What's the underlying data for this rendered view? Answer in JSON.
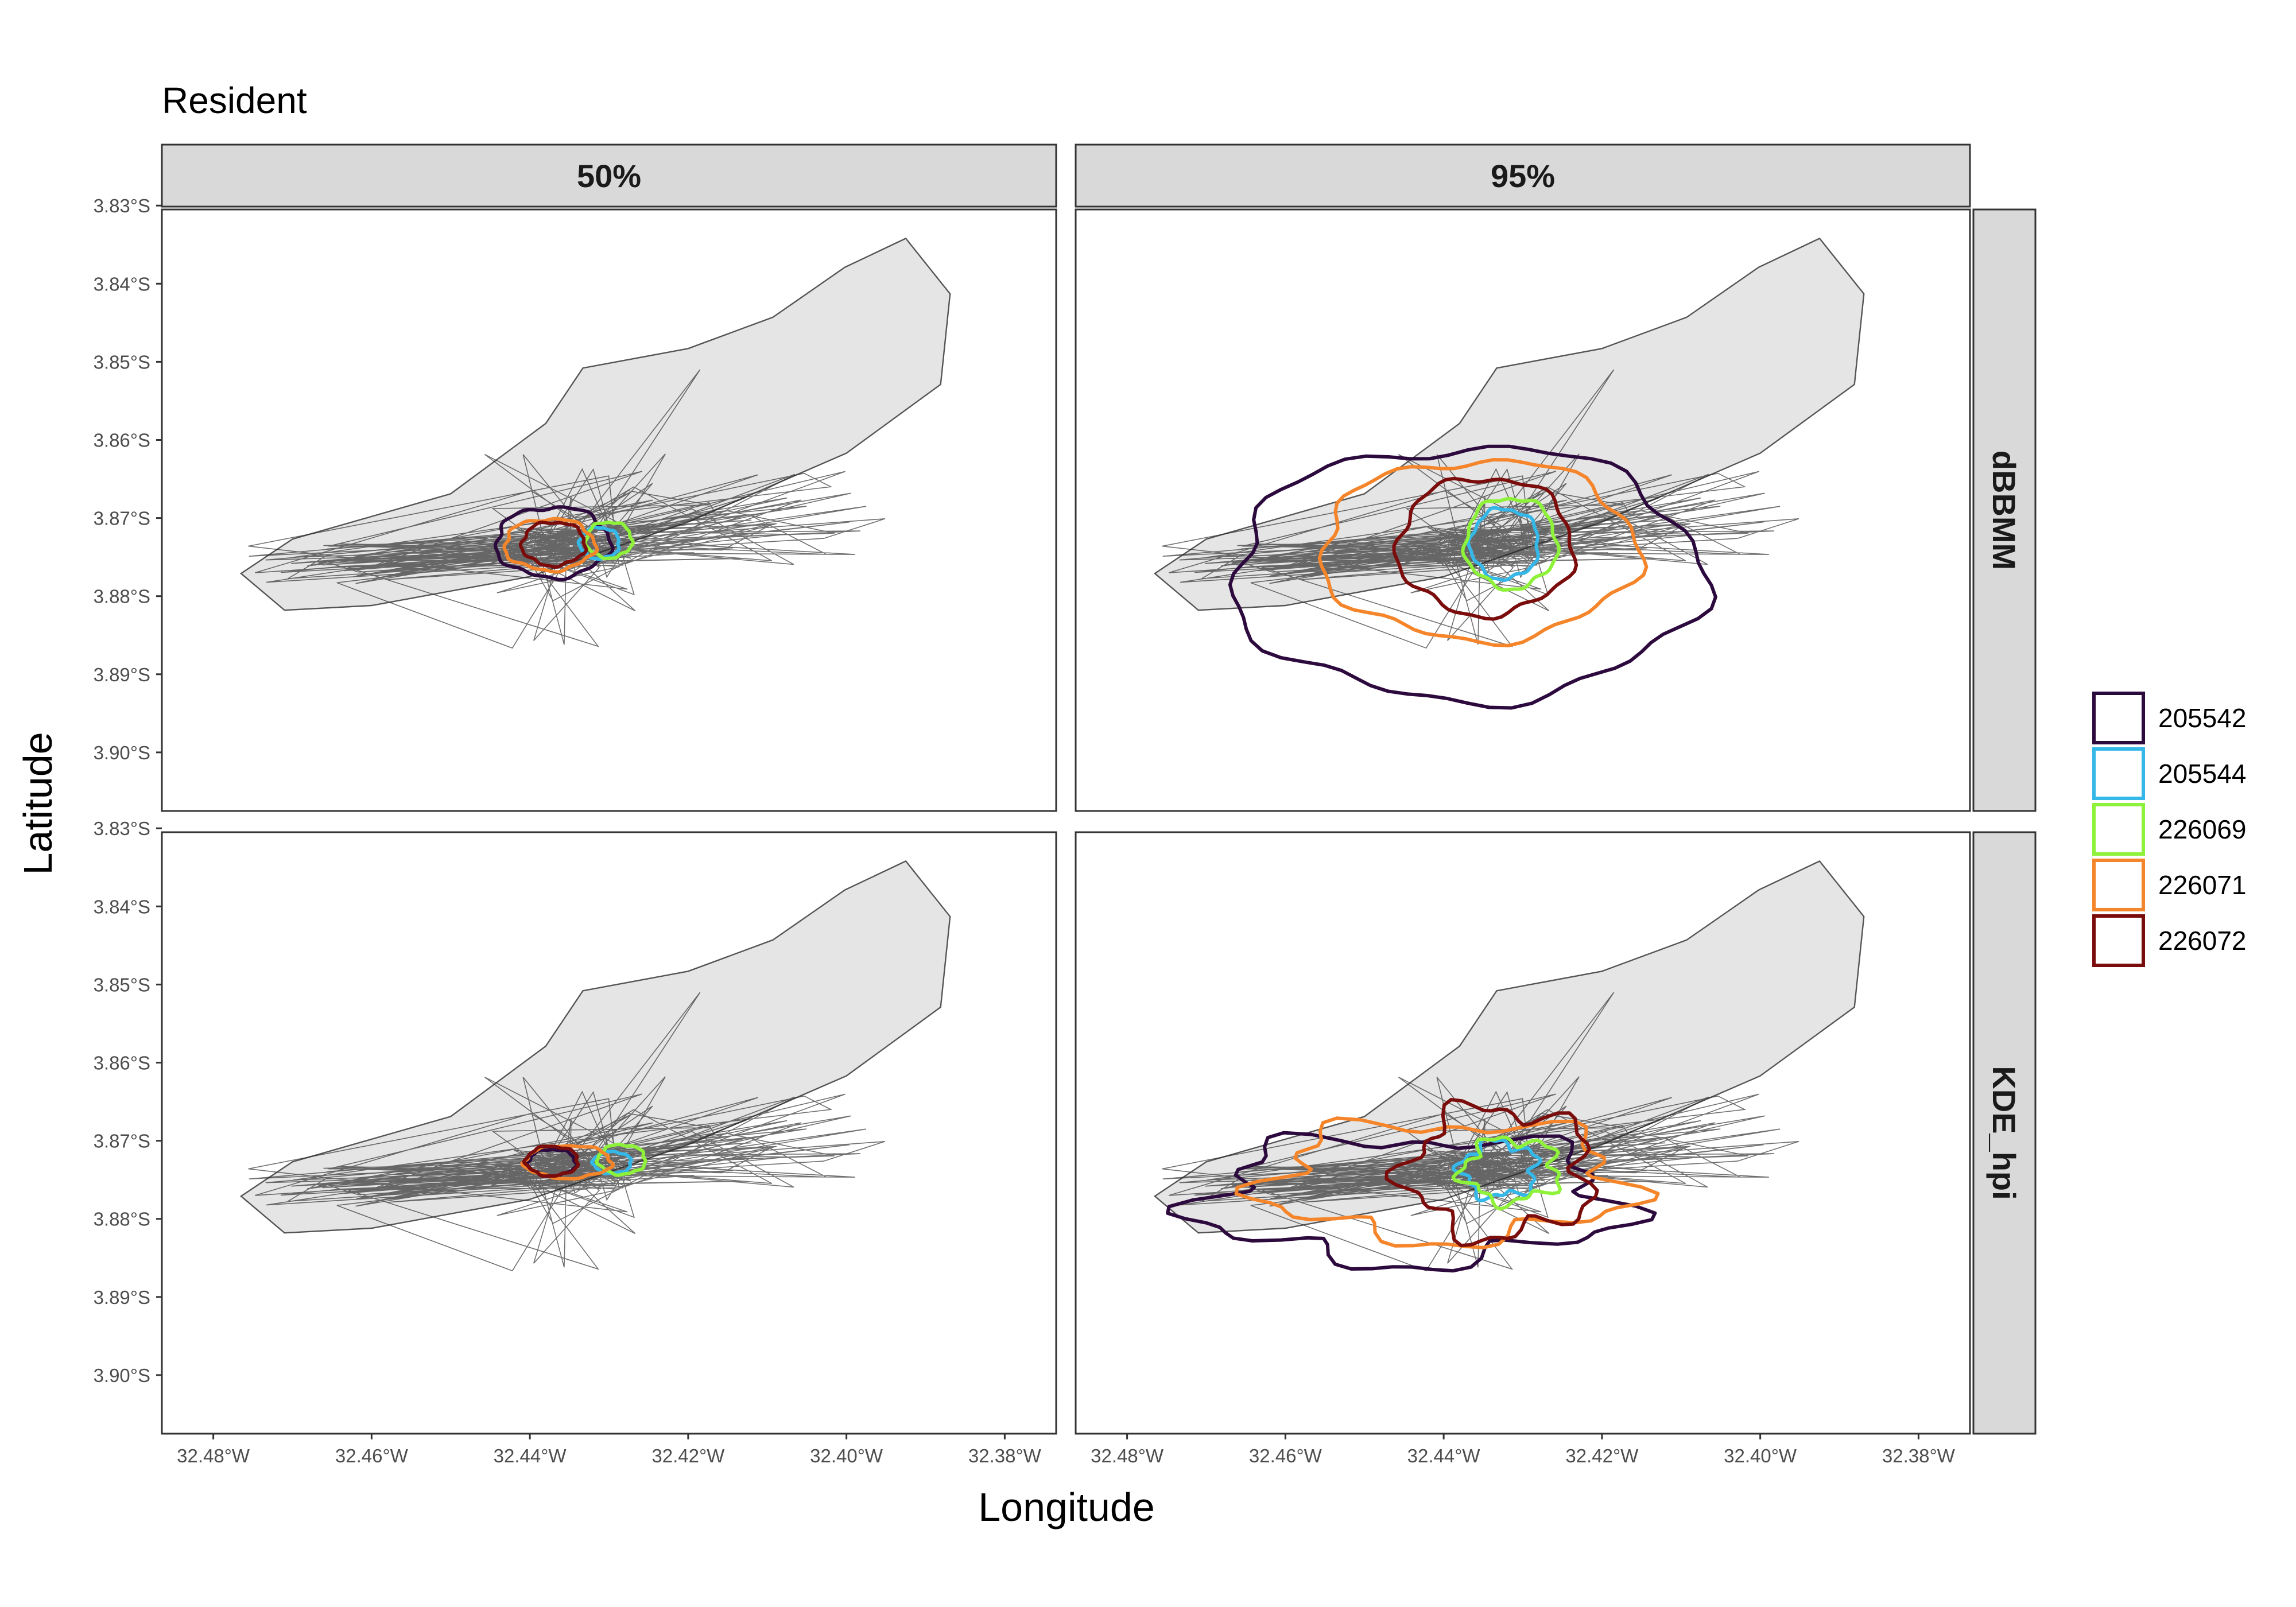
{
  "chart_data": {
    "type": "map",
    "title": "Resident",
    "xlabel": "Longitude",
    "ylabel": "Latitude",
    "xlim": [
      -32.4865,
      -32.3735
    ],
    "ylim": [
      -3.9075,
      -3.8305
    ],
    "x_ticks": [
      {
        "value": -32.48,
        "label": "32.48°W"
      },
      {
        "value": -32.46,
        "label": "32.46°W"
      },
      {
        "value": -32.44,
        "label": "32.44°W"
      },
      {
        "value": -32.42,
        "label": "32.42°W"
      },
      {
        "value": -32.4,
        "label": "32.40°W"
      },
      {
        "value": -32.38,
        "label": "32.38°W"
      }
    ],
    "y_ticks": [
      {
        "value": -3.83,
        "label": "3.83°S"
      },
      {
        "value": -3.84,
        "label": "3.84°S"
      },
      {
        "value": -3.85,
        "label": "3.85°S"
      },
      {
        "value": -3.86,
        "label": "3.86°S"
      },
      {
        "value": -3.87,
        "label": "3.87°S"
      },
      {
        "value": -3.88,
        "label": "3.88°S"
      },
      {
        "value": -3.89,
        "label": "3.89°S"
      },
      {
        "value": -3.9,
        "label": "3.90°S"
      }
    ],
    "facet_columns": [
      "50%",
      "95%"
    ],
    "facet_rows": [
      "dBBMM",
      "KDE_hpi"
    ],
    "legend": {
      "position": "right",
      "entries": [
        {
          "name": "205542",
          "color": "#2d0a3e"
        },
        {
          "name": "205544",
          "color": "#35b8e8"
        },
        {
          "name": "226069",
          "color": "#8ff23a"
        },
        {
          "name": "226071",
          "color": "#f5852a"
        },
        {
          "name": "226072",
          "color": "#7a0c0c"
        }
      ]
    },
    "background_polygon": [
      [
        -32.4765,
        -3.8771
      ],
      [
        -32.47,
        -3.8727
      ],
      [
        -32.46,
        -3.8698
      ],
      [
        -32.45,
        -3.8669
      ],
      [
        -32.438,
        -3.8579
      ],
      [
        -32.4333,
        -3.8508
      ],
      [
        -32.42,
        -3.8483
      ],
      [
        -32.4093,
        -3.8443
      ],
      [
        -32.4002,
        -3.8379
      ],
      [
        -32.3925,
        -3.8342
      ],
      [
        -32.3869,
        -3.8413
      ],
      [
        -32.3881,
        -3.8529
      ],
      [
        -32.4,
        -3.8617
      ],
      [
        -32.42,
        -3.8705
      ],
      [
        -32.44,
        -3.8775
      ],
      [
        -32.46,
        -3.8812
      ],
      [
        -32.471,
        -3.8818
      ]
    ],
    "track_center": [
      -32.434,
      -3.8738
    ],
    "contours": [
      {
        "row": "dBBMM",
        "level": "50%",
        "id": "205542",
        "center": [
          -32.4371,
          -3.8731
        ],
        "radii": [
          0.0072,
          0.0045
        ]
      },
      {
        "row": "dBBMM",
        "level": "50%",
        "id": "205544",
        "center": [
          -32.4312,
          -3.8732
        ],
        "radii": [
          0.0025,
          0.002
        ]
      },
      {
        "row": "dBBMM",
        "level": "50%",
        "id": "226069",
        "center": [
          -32.43,
          -3.8728
        ],
        "radii": [
          0.0029,
          0.0023
        ]
      },
      {
        "row": "dBBMM",
        "level": "50%",
        "id": "226071",
        "center": [
          -32.4375,
          -3.8734
        ],
        "radii": [
          0.0057,
          0.0033
        ]
      },
      {
        "row": "dBBMM",
        "level": "50%",
        "id": "226072",
        "center": [
          -32.437,
          -3.8733
        ],
        "radii": [
          0.004,
          0.0028
        ]
      },
      {
        "row": "dBBMM",
        "level": "95%",
        "id": "205542",
        "center": [
          -32.437,
          -3.8771
        ],
        "radii": [
          0.0297,
          0.0162
        ]
      },
      {
        "row": "dBBMM",
        "level": "95%",
        "id": "205544",
        "center": [
          -32.4323,
          -3.8733
        ],
        "radii": [
          0.0043,
          0.0045
        ]
      },
      {
        "row": "dBBMM",
        "level": "95%",
        "id": "226069",
        "center": [
          -32.4315,
          -3.8732
        ],
        "radii": [
          0.0058,
          0.0058
        ]
      },
      {
        "row": "dBBMM",
        "level": "95%",
        "id": "226071",
        "center": [
          -32.4355,
          -3.8741
        ],
        "radii": [
          0.02,
          0.0115
        ]
      },
      {
        "row": "dBBMM",
        "level": "95%",
        "id": "226072",
        "center": [
          -32.4347,
          -3.8736
        ],
        "radii": [
          0.0111,
          0.0088
        ]
      },
      {
        "row": "KDE_hpi",
        "level": "50%",
        "id": "205542",
        "center": [
          -32.4372,
          -3.8728
        ],
        "radii": [
          0.003,
          0.0017
        ]
      },
      {
        "row": "KDE_hpi",
        "level": "50%",
        "id": "205544",
        "center": [
          -32.4296,
          -3.8728
        ],
        "radii": [
          0.0024,
          0.0014
        ]
      },
      {
        "row": "KDE_hpi",
        "level": "50%",
        "id": "226069",
        "center": [
          -32.4284,
          -3.8724
        ],
        "radii": [
          0.003,
          0.0019
        ]
      },
      {
        "row": "KDE_hpi",
        "level": "50%",
        "id": "226071",
        "center": [
          -32.4352,
          -3.8727
        ],
        "radii": [
          0.0055,
          0.0021
        ]
      },
      {
        "row": "KDE_hpi",
        "level": "50%",
        "id": "226072",
        "center": [
          -32.4372,
          -3.8726
        ],
        "radii": [
          0.0033,
          0.0019
        ]
      },
      {
        "row": "KDE_hpi",
        "level": "95%",
        "id": "205542",
        "center": [
          -32.444,
          -3.8776
        ],
        "radii": [
          0.026,
          0.008
        ]
      },
      {
        "row": "KDE_hpi",
        "level": "95%",
        "id": "205544",
        "center": [
          -32.433,
          -3.8737
        ],
        "radii": [
          0.0047,
          0.0035
        ]
      },
      {
        "row": "KDE_hpi",
        "level": "95%",
        "id": "226069",
        "center": [
          -32.4315,
          -3.8738
        ],
        "radii": [
          0.006,
          0.004
        ]
      },
      {
        "row": "KDE_hpi",
        "level": "95%",
        "id": "226071",
        "center": [
          -32.4395,
          -3.8752
        ],
        "radii": [
          0.0225,
          0.0075
        ]
      },
      {
        "row": "KDE_hpi",
        "level": "95%",
        "id": "226072",
        "center": [
          -32.433,
          -3.874
        ],
        "radii": [
          0.0115,
          0.0082
        ]
      }
    ]
  }
}
